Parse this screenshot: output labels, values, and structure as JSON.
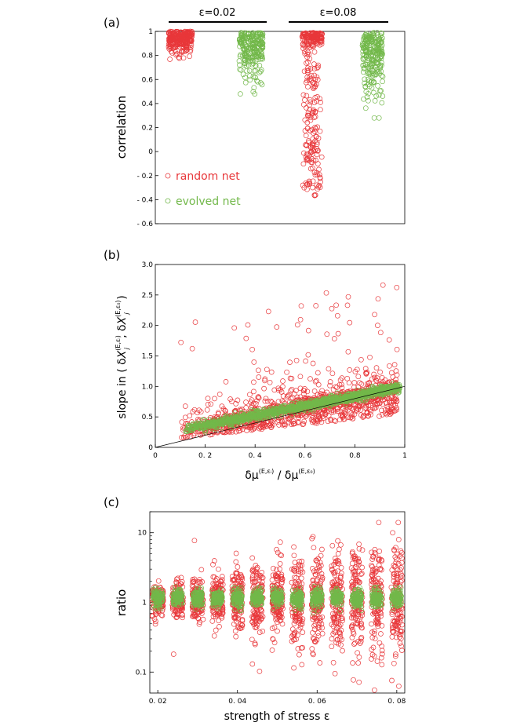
{
  "colors": {
    "random": "#e8373a",
    "evolved": "#72b84a",
    "frame": "#000000"
  },
  "chart_data": [
    {
      "panel": "(a)",
      "type": "scatter",
      "ylabel": "correlation",
      "ylim": [
        -0.6,
        1
      ],
      "yticks": [
        "1",
        "0.8",
        "0.6",
        "0.4",
        "0.2",
        "0",
        "- 0.2",
        "- 0.4",
        "- 0.6"
      ],
      "group_labels": [
        "ε=0.02",
        "ε=0.08"
      ],
      "legend": [
        "random net",
        "evolved net"
      ],
      "legend_position": "lower-left",
      "series": [
        {
          "name": "random net",
          "groups": [
            {
              "group": "ε=0.02",
              "y_range": [
                0.68,
                1.0
              ],
              "y_center": 0.91
            },
            {
              "group": "ε=0.08",
              "y_range": [
                -0.37,
                0.99
              ],
              "y_center": 0.5
            }
          ]
        },
        {
          "name": "evolved net",
          "groups": [
            {
              "group": "ε=0.02",
              "y_range": [
                0.48,
                1.0
              ],
              "y_center": 0.86
            },
            {
              "group": "ε=0.08",
              "y_range": [
                0.28,
                0.99
              ],
              "y_center": 0.72
            }
          ]
        }
      ]
    },
    {
      "panel": "(b)",
      "type": "scatter",
      "xlabel": "δμ(E,εᵢ) / δμ(E,ε₀)",
      "ylabel": "slope in ( δXⱼ(E,εᵢ), δXⱼ(E,ε₀) )",
      "xlim": [
        0,
        1
      ],
      "ylim": [
        0,
        3.0
      ],
      "xticks": [
        "0",
        "0. 2",
        "0. 4",
        "0. 6",
        "0.8",
        "1"
      ],
      "yticks": [
        "0",
        "0.5",
        "1.0",
        "1.5",
        "2.0",
        "2.5",
        "3.0"
      ],
      "reference_line": {
        "from": [
          0,
          0
        ],
        "to": [
          1,
          1
        ]
      },
      "series": [
        {
          "name": "random net",
          "x_range": [
            0.1,
            0.97
          ],
          "y_max": 2.8
        },
        {
          "name": "evolved net",
          "x_range": [
            0.12,
            0.98
          ],
          "trend": "y ≈ 0.2 + 0.8x"
        }
      ]
    },
    {
      "panel": "(c)",
      "type": "scatter",
      "xlabel": "strength of stress ε",
      "ylabel": "ratio",
      "yscale": "log",
      "xlim": [
        0.018,
        0.082
      ],
      "ylim": [
        0.05,
        20
      ],
      "xticks": [
        "0. 02",
        "0. 04",
        "0. 06",
        "0. 08"
      ],
      "yticks": [
        "10",
        "1",
        "0.1"
      ],
      "x": [
        0.02,
        0.025,
        0.03,
        0.035,
        0.04,
        0.045,
        0.05,
        0.055,
        0.06,
        0.065,
        0.07,
        0.075,
        0.08
      ],
      "series": [
        {
          "name": "random net",
          "spread_log10": [
            0.1,
            0.12,
            0.14,
            0.17,
            0.2,
            0.23,
            0.26,
            0.29,
            0.32,
            0.35,
            0.38,
            0.42,
            0.45
          ]
        },
        {
          "name": "evolved net",
          "center": 1.15,
          "spread_log10": 0.06
        }
      ]
    }
  ]
}
